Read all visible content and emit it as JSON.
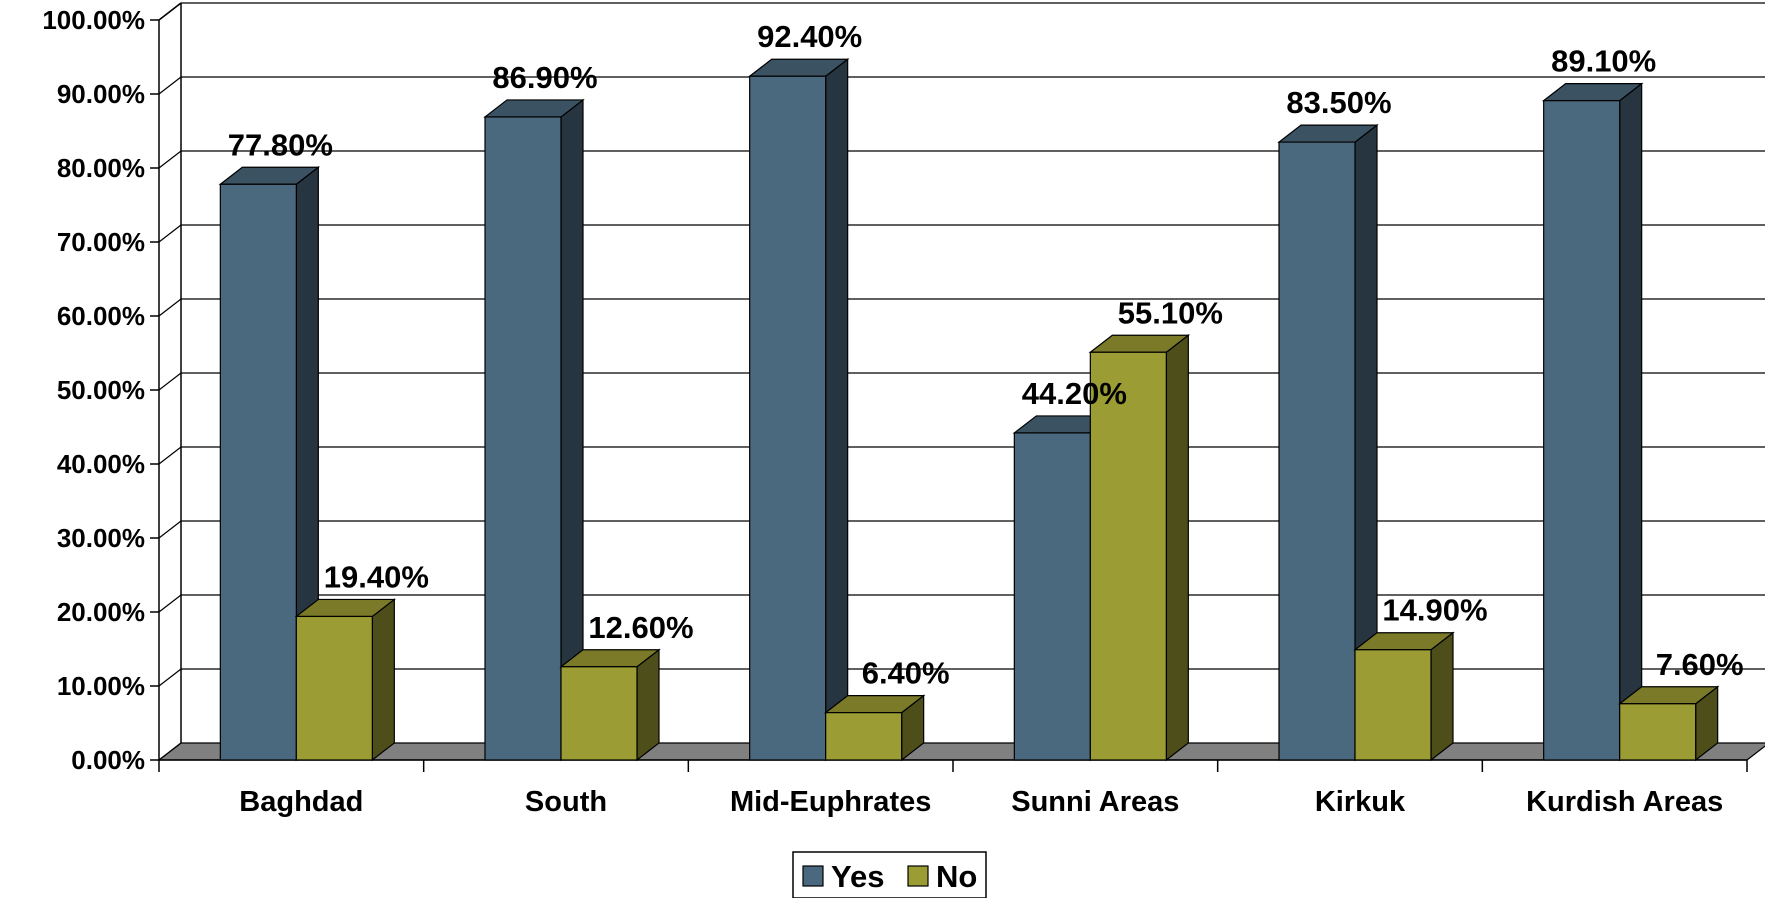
{
  "chart_data": {
    "type": "bar",
    "style": "3d-clustered-column",
    "categories": [
      "Baghdad",
      "South",
      "Mid-Euphrates",
      "Sunni Areas",
      "Kirkuk",
      "Kurdish Areas"
    ],
    "series": [
      {
        "name": "Yes",
        "values": [
          77.8,
          86.9,
          92.4,
          44.2,
          83.5,
          89.1
        ],
        "labels": [
          "77.80%",
          "86.90%",
          "92.40%",
          "44.20%",
          "83.50%",
          "89.10%"
        ],
        "color": "#4B697E"
      },
      {
        "name": "No",
        "values": [
          19.4,
          12.6,
          6.4,
          55.1,
          14.9,
          7.6
        ],
        "labels": [
          "19.40%",
          "12.60%",
          "6.40%",
          "55.10%",
          "14.90%",
          "7.60%"
        ],
        "color": "#9C9C34"
      }
    ],
    "yticks": [
      "0.00%",
      "10.00%",
      "20.00%",
      "30.00%",
      "40.00%",
      "50.00%",
      "60.00%",
      "70.00%",
      "80.00%",
      "90.00%",
      "100.00%"
    ],
    "ylim": [
      0,
      100
    ],
    "grid": true,
    "legend_position": "bottom-center",
    "floor_color": "#808080"
  }
}
